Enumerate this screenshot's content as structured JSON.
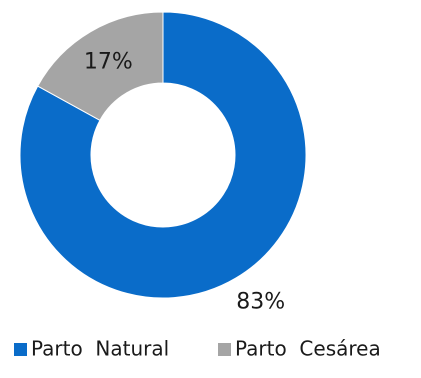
{
  "chart_data": {
    "type": "pie",
    "style": "donut",
    "slices": [
      {
        "name": "Parto  Natural",
        "value": 83,
        "label": "83%",
        "color": "#0a6cc9"
      },
      {
        "name": "Parto  Cesárea",
        "value": 17,
        "label": "17%",
        "color": "#a5a5a5"
      }
    ],
    "legend_position": "bottom",
    "title": ""
  }
}
